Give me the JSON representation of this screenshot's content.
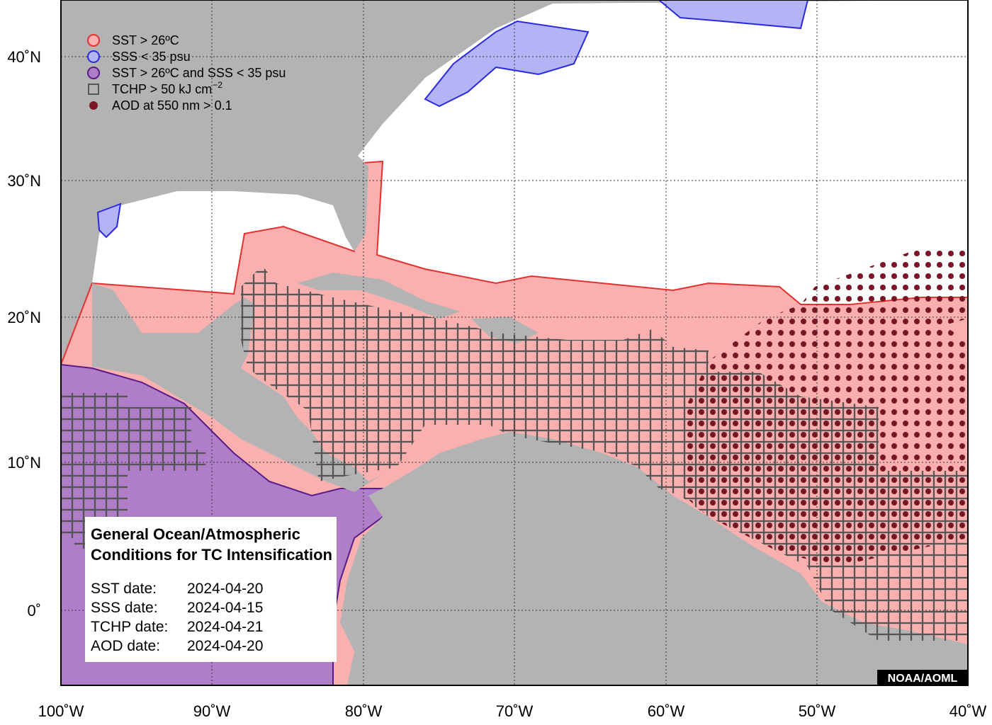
{
  "legend": [
    {
      "label": "SST > 26ºC"
    },
    {
      "label": "SSS < 35 psu"
    },
    {
      "label": "SST > 26ºC and SSS < 35 psu"
    },
    {
      "label": "TCHP > 50 kJ cm",
      "sup": "−2"
    },
    {
      "label": "AOD at 550 nm > 0.1"
    }
  ],
  "axes": {
    "x_labels": [
      "100˚W",
      "90˚W",
      "80˚W",
      "70˚W",
      "60˚W",
      "50˚W",
      "40˚W"
    ],
    "y_labels": [
      "40˚N",
      "30˚N",
      "20˚N",
      "10˚N",
      "0˚"
    ]
  },
  "info": {
    "title": [
      "General Ocean/Atmospheric",
      "Conditions for TC Intensification"
    ],
    "dates": [
      {
        "label": "SST date:",
        "value": "2024-04-20"
      },
      {
        "label": "SSS date:",
        "value": "2024-04-15"
      },
      {
        "label": "TCHP date:",
        "value": "2024-04-21"
      },
      {
        "label": "AOD date:",
        "value": "2024-04-20"
      }
    ]
  },
  "credit": "NOAA/AOML"
}
